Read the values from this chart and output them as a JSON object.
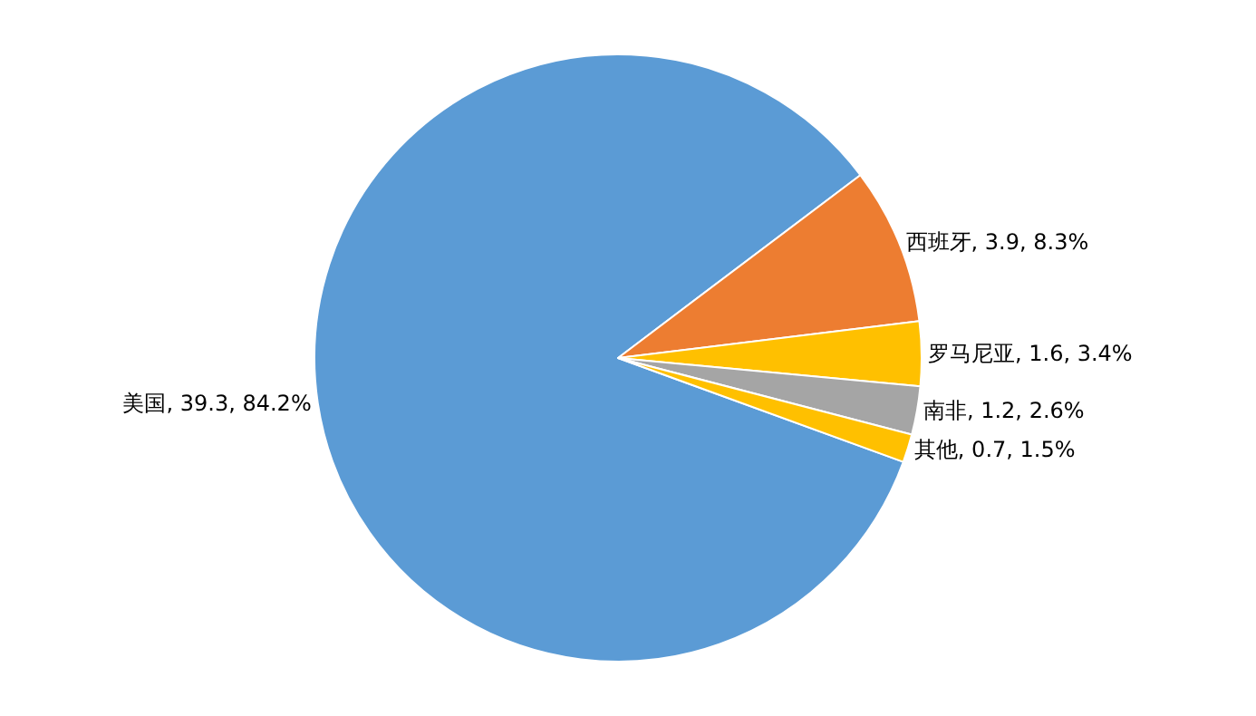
{
  "chart_data": {
    "type": "pie",
    "categories": [
      "美国",
      "西班牙",
      "罗马尼亚",
      "南非",
      "其他"
    ],
    "values": [
      39.3,
      3.9,
      1.6,
      1.2,
      0.7
    ],
    "value_labels": [
      "39.3, 84.2%",
      "3.9, 8.3%",
      "1.6, 3.4%",
      "1.2, 2.6%",
      "0.7, 1.5%"
    ],
    "colors": [
      "#5b9bd5",
      "#ed7d31",
      "#ffc000",
      "#a5a5a5",
      "#ffc000"
    ],
    "legend": false
  }
}
